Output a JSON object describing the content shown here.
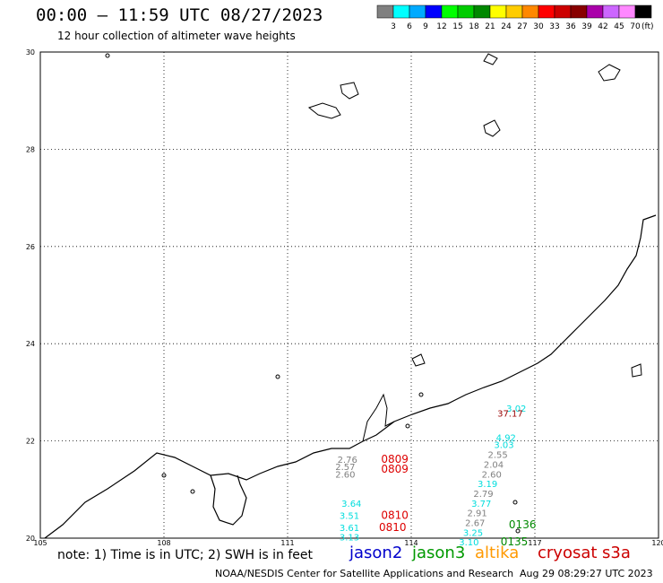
{
  "header": {
    "title": "00:00 – 11:59 UTC 08/27/2023",
    "subtitle": "12 hour collection of altimeter wave heights"
  },
  "legend": {
    "colors": [
      "#808080",
      "#00ffff",
      "#00aaff",
      "#0000ff",
      "#00ff00",
      "#00cc00",
      "#008800",
      "#ffff00",
      "#ffcc00",
      "#ff8800",
      "#ff0000",
      "#cc0000",
      "#880000",
      "#aa00aa",
      "#cc66ff",
      "#ff88ff",
      "#000000"
    ],
    "labels": [
      "3",
      "6",
      "9",
      "12",
      "15",
      "18",
      "21",
      "24",
      "27",
      "30",
      "33",
      "36",
      "39",
      "42",
      "45",
      "70"
    ],
    "unit": "(ft)"
  },
  "map": {
    "lon_ticks": [
      "105",
      "108",
      "111",
      "114",
      "117",
      "120"
    ],
    "lat_ticks": [
      "20",
      "22",
      "24",
      "26",
      "28",
      "30"
    ],
    "lon_range": [
      105,
      120
    ],
    "lat_range": [
      20,
      30
    ],
    "observations": [
      {
        "lon": 116.55,
        "lat": 22.6,
        "value": "3.02",
        "color": "#00dddd"
      },
      {
        "lon": 116.4,
        "lat": 22.5,
        "value": "37.17",
        "color": "#990000"
      },
      {
        "lon": 116.3,
        "lat": 22.0,
        "value": "4.92",
        "color": "#00dddd"
      },
      {
        "lon": 116.25,
        "lat": 21.85,
        "value": "3.03",
        "color": "#00dddd"
      },
      {
        "lon": 116.1,
        "lat": 21.65,
        "value": "2.55",
        "color": "#808080"
      },
      {
        "lon": 116.0,
        "lat": 21.45,
        "value": "2.04",
        "color": "#808080"
      },
      {
        "lon": 115.95,
        "lat": 21.25,
        "value": "2.60",
        "color": "#808080"
      },
      {
        "lon": 115.85,
        "lat": 21.05,
        "value": "3.19",
        "color": "#00dddd"
      },
      {
        "lon": 115.75,
        "lat": 20.85,
        "value": "2.79",
        "color": "#808080"
      },
      {
        "lon": 115.7,
        "lat": 20.65,
        "value": "3.77",
        "color": "#00dddd"
      },
      {
        "lon": 115.6,
        "lat": 20.45,
        "value": "2.91",
        "color": "#808080"
      },
      {
        "lon": 115.55,
        "lat": 20.25,
        "value": "2.67",
        "color": "#808080"
      },
      {
        "lon": 115.5,
        "lat": 20.05,
        "value": "3.25",
        "color": "#00dddd"
      },
      {
        "lon": 115.4,
        "lat": 19.85,
        "value": "3.10",
        "color": "#00dddd"
      },
      {
        "lon": 112.45,
        "lat": 21.55,
        "value": "2.76",
        "color": "#808080"
      },
      {
        "lon": 112.4,
        "lat": 21.4,
        "value": "2.57",
        "color": "#808080"
      },
      {
        "lon": 112.4,
        "lat": 21.25,
        "value": "2.60",
        "color": "#808080"
      },
      {
        "lon": 112.55,
        "lat": 20.65,
        "value": "3.64",
        "color": "#00dddd"
      },
      {
        "lon": 112.5,
        "lat": 20.4,
        "value": "3.51",
        "color": "#00dddd"
      },
      {
        "lon": 112.5,
        "lat": 20.15,
        "value": "3.61",
        "color": "#00dddd"
      },
      {
        "lon": 112.5,
        "lat": 19.95,
        "value": "3.13",
        "color": "#00dddd"
      }
    ],
    "pass_times": [
      {
        "lon": 113.6,
        "lat": 21.55,
        "text": "0809",
        "color": "#dd0000"
      },
      {
        "lon": 113.6,
        "lat": 21.35,
        "text": "0809",
        "color": "#dd0000"
      },
      {
        "lon": 113.6,
        "lat": 20.4,
        "text": "0810",
        "color": "#dd0000"
      },
      {
        "lon": 113.55,
        "lat": 20.15,
        "text": "0810",
        "color": "#dd0000"
      },
      {
        "lon": 116.7,
        "lat": 20.2,
        "text": "0136",
        "color": "#008800"
      },
      {
        "lon": 116.5,
        "lat": 19.85,
        "text": "0135",
        "color": "#008800"
      }
    ]
  },
  "footer": {
    "note": "note: 1) Time is in UTC; 2) SWH is in feet",
    "satellites": [
      {
        "name": "jason2",
        "color": "#0000cc"
      },
      {
        "name": "jason3",
        "color": "#009900"
      },
      {
        "name": "altika",
        "color": "#ff9900"
      },
      {
        "name": "cryosat",
        "color": "#cc0000"
      },
      {
        "name": "s3a",
        "color": "#cc0000"
      }
    ],
    "credit": "NOAA/NESDIS Center for Satellite Applications and Research",
    "timestamp": "Aug 29 08:29:27 UTC 2023"
  }
}
